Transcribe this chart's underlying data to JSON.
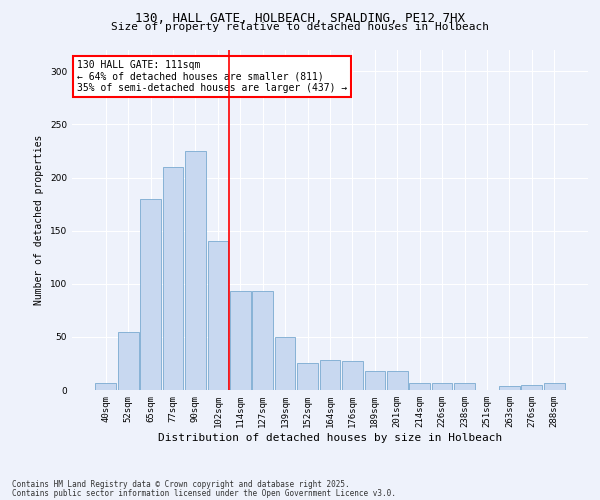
{
  "title_line1": "130, HALL GATE, HOLBEACH, SPALDING, PE12 7HX",
  "title_line2": "Size of property relative to detached houses in Holbeach",
  "xlabel": "Distribution of detached houses by size in Holbeach",
  "ylabel": "Number of detached properties",
  "footer_line1": "Contains HM Land Registry data © Crown copyright and database right 2025.",
  "footer_line2": "Contains public sector information licensed under the Open Government Licence v3.0.",
  "annotation_line1": "130 HALL GATE: 111sqm",
  "annotation_line2": "← 64% of detached houses are smaller (811)",
  "annotation_line3": "35% of semi-detached houses are larger (437) →",
  "bar_labels": [
    "40sqm",
    "52sqm",
    "65sqm",
    "77sqm",
    "90sqm",
    "102sqm",
    "114sqm",
    "127sqm",
    "139sqm",
    "152sqm",
    "164sqm",
    "176sqm",
    "189sqm",
    "201sqm",
    "214sqm",
    "226sqm",
    "238sqm",
    "251sqm",
    "263sqm",
    "276sqm",
    "288sqm"
  ],
  "bar_values": [
    7,
    55,
    180,
    210,
    225,
    140,
    93,
    93,
    50,
    25,
    28,
    27,
    18,
    18,
    7,
    7,
    7,
    0,
    4,
    5,
    7
  ],
  "bar_color": "#c8d8f0",
  "bar_edge_color": "#7aaad0",
  "vline_x_index": 5.5,
  "vline_color": "red",
  "ylim": [
    0,
    320
  ],
  "yticks": [
    0,
    50,
    100,
    150,
    200,
    250,
    300
  ],
  "background_color": "#eef2fb",
  "plot_bg_color": "#eef2fb",
  "annotation_box_color": "white",
  "annotation_box_edge": "red",
  "title_fontsize": 9,
  "subtitle_fontsize": 8,
  "xlabel_fontsize": 8,
  "ylabel_fontsize": 7,
  "tick_fontsize": 6.5,
  "annotation_fontsize": 7,
  "footer_fontsize": 5.5
}
